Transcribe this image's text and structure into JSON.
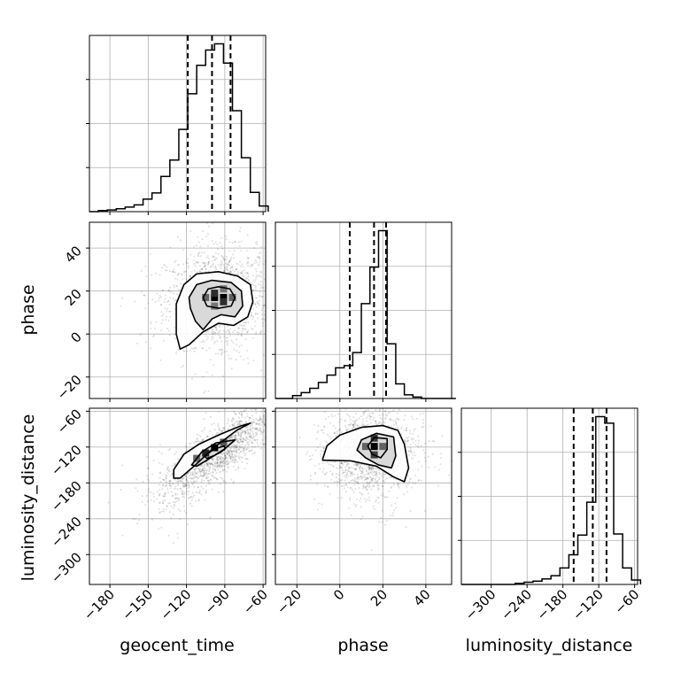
{
  "chart_data": {
    "type": "corner",
    "parameters": [
      "geocent_time",
      "phase",
      "luminosity_distance"
    ],
    "grid": true,
    "colors": {
      "line": "#000000",
      "grid": "#b0b0b0",
      "scatter": "#000000"
    },
    "histograms": [
      {
        "name": "geocent_time",
        "xlim": [
          -196,
          -58
        ],
        "xticks": [
          -180,
          -150,
          -120,
          -90,
          -60
        ],
        "quantiles": [
          -119,
          -100,
          -85.5
        ],
        "bin_edges": [
          -196,
          -189,
          -182,
          -175,
          -168,
          -161,
          -154,
          -147,
          -140,
          -133,
          -126,
          -119,
          -112,
          -105,
          -98,
          -91,
          -84,
          -77,
          -70,
          -63,
          -56
        ],
        "counts": [
          0,
          2,
          3,
          5,
          8,
          12,
          22,
          33,
          62,
          91,
          145,
          208,
          258,
          285,
          296,
          262,
          178,
          95,
          34,
          10
        ]
      },
      {
        "name": "phase",
        "xlim": [
          -30,
          52
        ],
        "xticks": [
          -20,
          0,
          20,
          40
        ],
        "quantiles": [
          4.6,
          15.9,
          21.5
        ],
        "bin_edges": [
          -30,
          -26,
          -22,
          -18,
          -14,
          -10,
          -6,
          -2,
          2,
          6,
          10,
          14,
          18,
          22,
          26,
          30,
          34,
          38,
          42,
          46,
          50,
          54
        ],
        "counts": [
          0,
          0,
          4,
          8,
          14,
          22,
          32,
          42,
          45,
          63,
          130,
          180,
          230,
          75,
          20,
          5,
          2,
          0,
          0,
          0,
          0
        ]
      },
      {
        "name": "luminosity_distance",
        "xlim": [
          -350,
          -55
        ],
        "xticks": [
          -300,
          -240,
          -180,
          -120,
          -60
        ],
        "quantiles": [
          -162,
          -130,
          -107
        ],
        "bin_edges": [
          -350,
          -335,
          -320,
          -305,
          -290,
          -275,
          -260,
          -245,
          -230,
          -215,
          -200,
          -185,
          -170,
          -155,
          -140,
          -125,
          -110,
          -95,
          -80,
          -65,
          -50
        ],
        "counts": [
          0,
          0,
          0,
          0,
          0,
          0,
          1,
          2,
          3,
          5,
          8,
          15,
          27,
          45,
          75,
          153,
          147,
          46,
          15,
          4
        ]
      }
    ],
    "joints": [
      {
        "x": "geocent_time",
        "y": "phase",
        "ylim": [
          -30,
          52
        ],
        "yticks": [
          -20,
          0,
          20,
          40
        ],
        "center": [
          -95,
          17
        ],
        "spread": [
          20,
          11
        ],
        "correlation": 0.05,
        "contours": [
          [
            [
              -128,
              14
            ],
            [
              -122,
              23
            ],
            [
              -112,
              28
            ],
            [
              -95,
              29
            ],
            [
              -80,
              27
            ],
            [
              -70,
              23
            ],
            [
              -68,
              15
            ],
            [
              -72,
              8
            ],
            [
              -83,
              4
            ],
            [
              -95,
              5
            ],
            [
              -107,
              1
            ],
            [
              -118,
              -5
            ],
            [
              -125,
              -7
            ],
            [
              -128,
              0
            ]
          ],
          [
            [
              -118,
              17
            ],
            [
              -112,
              23
            ],
            [
              -100,
              25
            ],
            [
              -85,
              24
            ],
            [
              -77,
              20
            ],
            [
              -76,
              13
            ],
            [
              -82,
              8
            ],
            [
              -93,
              9
            ],
            [
              -100,
              7
            ],
            [
              -107,
              2
            ],
            [
              -113,
              6
            ],
            [
              -117,
              12
            ]
          ],
          [
            [
              -107,
              17
            ],
            [
              -103,
              21
            ],
            [
              -95,
              22
            ],
            [
              -86,
              21
            ],
            [
              -82,
              17
            ],
            [
              -85,
              13
            ],
            [
              -95,
              12
            ],
            [
              -104,
              13
            ]
          ]
        ],
        "density_cells": [
          {
            "x": -98,
            "y": 17,
            "level": 1.0
          },
          {
            "x": -91,
            "y": 17,
            "level": 1.0
          },
          {
            "x": -98,
            "y": 19,
            "level": 0.75
          },
          {
            "x": -91,
            "y": 15,
            "level": 0.75
          },
          {
            "x": -105,
            "y": 17,
            "level": 0.45
          },
          {
            "x": -84,
            "y": 17,
            "level": 0.45
          },
          {
            "x": -98,
            "y": 13,
            "level": 0.35
          },
          {
            "x": -91,
            "y": 21,
            "level": 0.35
          }
        ]
      },
      {
        "x": "geocent_time",
        "y": "luminosity_distance",
        "ylim": [
          -350,
          -55
        ],
        "yticks": [
          -300,
          -240,
          -180,
          -120,
          -60
        ],
        "center": [
          -97,
          -132
        ],
        "spread": [
          22,
          38
        ],
        "correlation": 0.82,
        "contours": [
          [
            [
              -130,
              -158
            ],
            [
              -122,
              -132
            ],
            [
              -110,
              -115
            ],
            [
              -95,
              -100
            ],
            [
              -78,
              -85
            ],
            [
              -70,
              -80
            ],
            [
              -80,
              -91
            ],
            [
              -98,
              -120
            ],
            [
              -113,
              -150
            ],
            [
              -125,
              -172
            ],
            [
              -130,
              -172
            ]
          ],
          [
            [
              -116,
              -150
            ],
            [
              -108,
              -128
            ],
            [
              -97,
              -113
            ],
            [
              -82,
              -108
            ],
            [
              -90,
              -123
            ],
            [
              -104,
              -142
            ],
            [
              -112,
              -152
            ]
          ],
          [
            [
              -106,
              -135
            ],
            [
              -98,
              -123
            ],
            [
              -90,
              -118
            ],
            [
              -90,
              -124
            ],
            [
              -98,
              -134
            ],
            [
              -104,
              -139
            ]
          ]
        ],
        "density_cells": [
          {
            "x": -98,
            "y": -121,
            "level": 1.0
          },
          {
            "x": -105,
            "y": -130,
            "level": 0.8
          },
          {
            "x": -91,
            "y": -112,
            "level": 0.5
          },
          {
            "x": -112,
            "y": -139,
            "level": 0.4
          }
        ]
      },
      {
        "x": "phase",
        "y": "luminosity_distance",
        "ylim": [
          -350,
          -55
        ],
        "yticks": [
          -300,
          -240,
          -180,
          -120,
          -60
        ],
        "center": [
          14,
          -130
        ],
        "spread": [
          10,
          32
        ],
        "correlation": 0.0,
        "contours": [
          [
            [
              -8,
              -140
            ],
            [
              -6,
              -118
            ],
            [
              0,
              -100
            ],
            [
              10,
              -87
            ],
            [
              20,
              -84
            ],
            [
              27,
              -92
            ],
            [
              30,
              -115
            ],
            [
              32,
              -155
            ],
            [
              30,
              -178
            ],
            [
              25,
              -170
            ],
            [
              17,
              -152
            ],
            [
              5,
              -143
            ],
            [
              -8,
              -142
            ]
          ],
          [
            [
              8,
              -125
            ],
            [
              10,
              -108
            ],
            [
              17,
              -97
            ],
            [
              25,
              -103
            ],
            [
              26,
              -135
            ],
            [
              24,
              -155
            ],
            [
              18,
              -150
            ],
            [
              12,
              -138
            ]
          ],
          [
            [
              13,
              -118
            ],
            [
              16,
              -104
            ],
            [
              22,
              -106
            ],
            [
              22,
              -124
            ],
            [
              19,
              -138
            ],
            [
              15,
              -132
            ]
          ]
        ],
        "density_cells": [
          {
            "x": 16,
            "y": -119,
            "level": 1.0
          },
          {
            "x": 16,
            "y": -105,
            "level": 0.7
          },
          {
            "x": 16,
            "y": -133,
            "level": 0.65
          },
          {
            "x": 20,
            "y": -119,
            "level": 0.45
          },
          {
            "x": 12,
            "y": -119,
            "level": 0.45
          }
        ]
      }
    ]
  }
}
